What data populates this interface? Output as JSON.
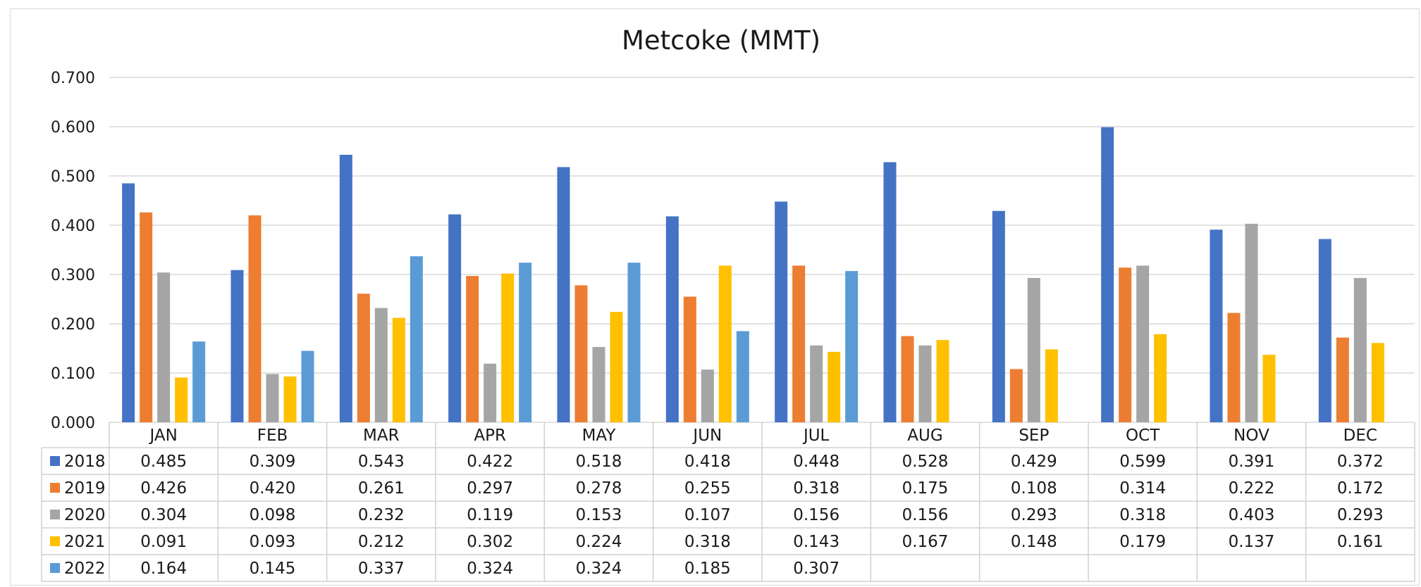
{
  "chart_data": {
    "type": "bar",
    "title": "Metcoke (MMT)",
    "categories": [
      "JAN",
      "FEB",
      "MAR",
      "APR",
      "MAY",
      "JUN",
      "JUL",
      "AUG",
      "SEP",
      "OCT",
      "NOV",
      "DEC"
    ],
    "yticks": [
      "0.000",
      "0.100",
      "0.200",
      "0.300",
      "0.400",
      "0.500",
      "0.600",
      "0.700"
    ],
    "ylim": [
      0,
      0.7
    ],
    "grid": true,
    "legend": "data-table",
    "series": [
      {
        "name": "2018",
        "color": "#4472C4",
        "values": [
          0.485,
          0.309,
          0.543,
          0.422,
          0.518,
          0.418,
          0.448,
          0.528,
          0.429,
          0.599,
          0.391,
          0.372
        ],
        "labels": [
          "0.485",
          "0.309",
          "0.543",
          "0.422",
          "0.518",
          "0.418",
          "0.448",
          "0.528",
          "0.429",
          "0.599",
          "0.391",
          "0.372"
        ]
      },
      {
        "name": "2019",
        "color": "#ED7D31",
        "values": [
          0.426,
          0.42,
          0.261,
          0.297,
          0.278,
          0.255,
          0.318,
          0.175,
          0.108,
          0.314,
          0.222,
          0.172
        ],
        "labels": [
          "0.426",
          "0.420",
          "0.261",
          "0.297",
          "0.278",
          "0.255",
          "0.318",
          "0.175",
          "0.108",
          "0.314",
          "0.222",
          "0.172"
        ]
      },
      {
        "name": "2020",
        "color": "#A5A5A5",
        "values": [
          0.304,
          0.098,
          0.232,
          0.119,
          0.153,
          0.107,
          0.156,
          0.156,
          0.293,
          0.318,
          0.403,
          0.293
        ],
        "labels": [
          "0.304",
          "0.098",
          "0.232",
          "0.119",
          "0.153",
          "0.107",
          "0.156",
          "0.156",
          "0.293",
          "0.318",
          "0.403",
          "0.293"
        ]
      },
      {
        "name": "2021",
        "color": "#FFC000",
        "values": [
          0.091,
          0.093,
          0.212,
          0.302,
          0.224,
          0.318,
          0.143,
          0.167,
          0.148,
          0.179,
          0.137,
          0.161
        ],
        "labels": [
          "0.091",
          "0.093",
          "0.212",
          "0.302",
          "0.224",
          "0.318",
          "0.143",
          "0.167",
          "0.148",
          "0.179",
          "0.137",
          "0.161"
        ]
      },
      {
        "name": "2022",
        "color": "#5B9BD5",
        "values": [
          0.164,
          0.145,
          0.337,
          0.324,
          0.324,
          0.185,
          0.307,
          null,
          null,
          null,
          null,
          null
        ],
        "labels": [
          "0.164",
          "0.145",
          "0.337",
          "0.324",
          "0.324",
          "0.185",
          "0.307",
          "",
          "",
          "",
          "",
          ""
        ]
      }
    ]
  }
}
